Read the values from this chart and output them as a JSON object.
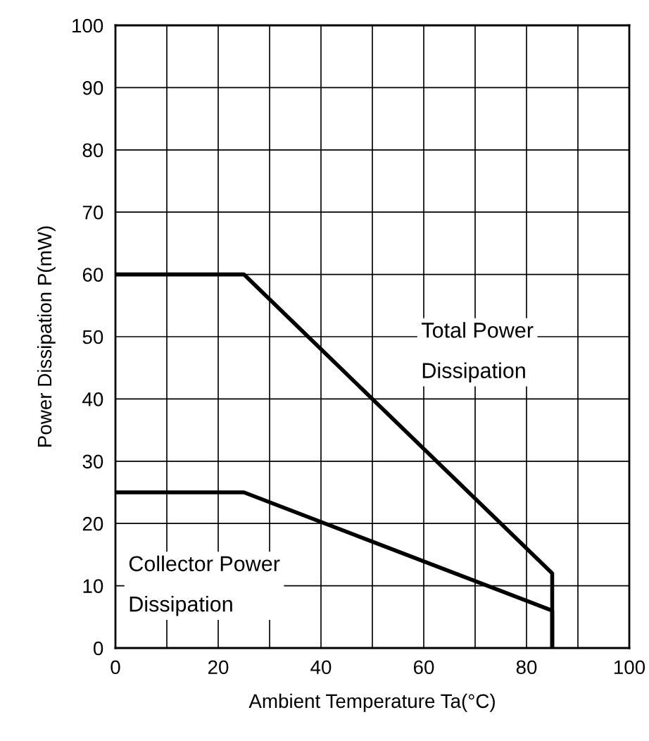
{
  "chart_data": {
    "type": "line",
    "xlabel": "Ambient Temperature Ta(°C)",
    "ylabel": "Power Dissipation P(mW)",
    "series": [
      {
        "name": "Total Power\nDissipation",
        "color": "#000000",
        "x": [
          0,
          25,
          85,
          85
        ],
        "values": [
          60,
          60,
          12,
          0
        ]
      },
      {
        "name": "Collector Power\nDissipation",
        "color": "#000000",
        "x": [
          0,
          25,
          85,
          85
        ],
        "values": [
          25,
          25,
          6,
          0
        ]
      }
    ],
    "xlim": [
      0,
      100
    ],
    "ylim": [
      0,
      100
    ],
    "xticks": [
      0,
      {
        "value": 10,
        "label": null
      },
      20,
      {
        "value": 30,
        "label": null
      },
      40,
      {
        "value": 50,
        "label": null
      },
      60,
      {
        "value": 70,
        "label": null
      },
      80,
      {
        "value": 90,
        "label": null
      },
      100
    ],
    "yticks": [
      0,
      10,
      20,
      30,
      40,
      50,
      60,
      70,
      80,
      90,
      100
    ],
    "grid": true,
    "marker": "none",
    "line_style": "solid",
    "legend": false
  }
}
